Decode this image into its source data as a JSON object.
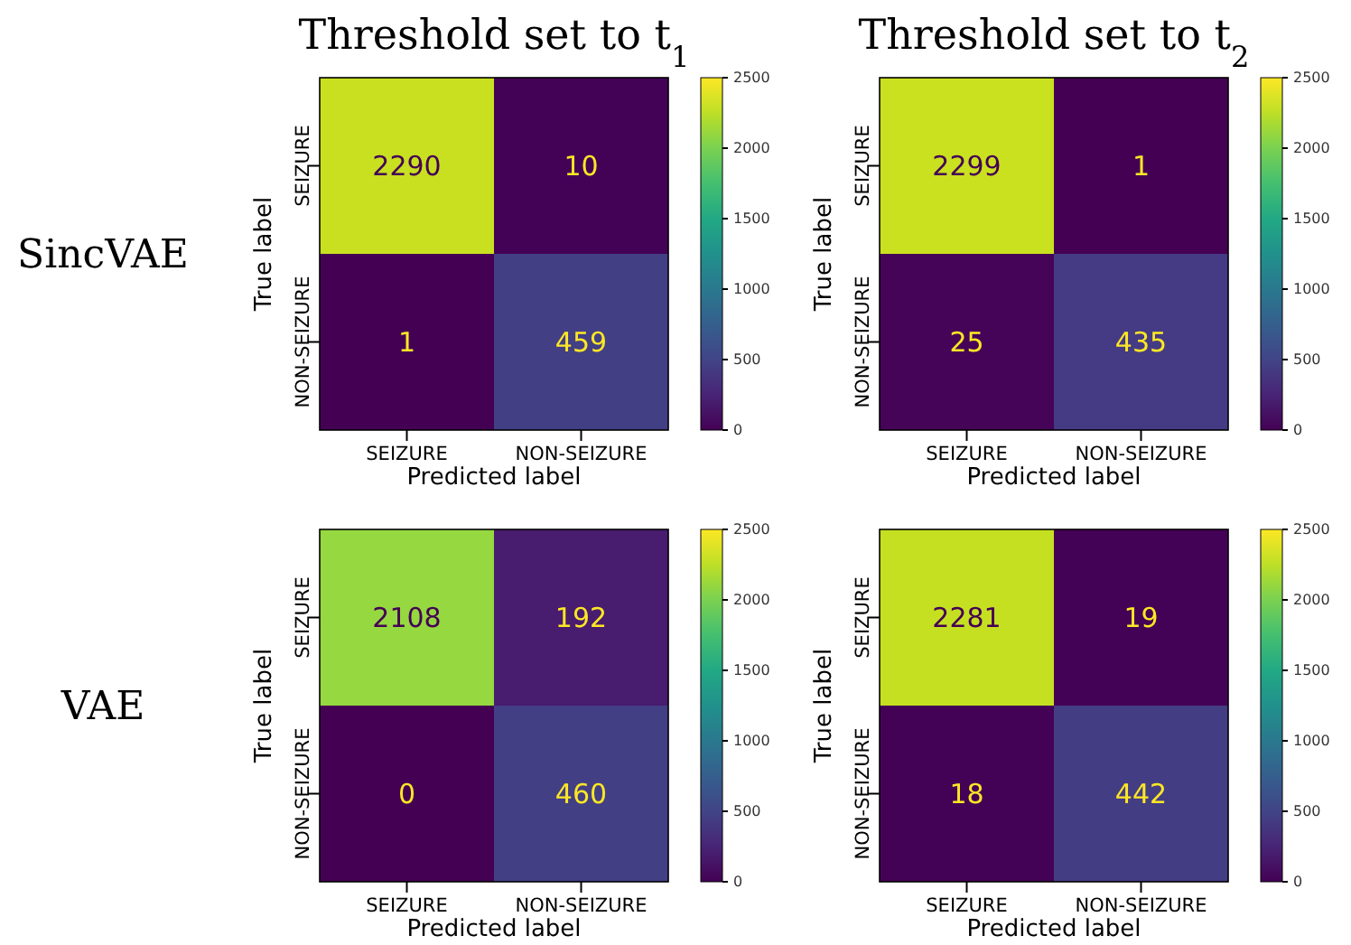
{
  "chart_data": [
    {
      "type": "heatmap",
      "title": "Threshold set to t$_{1}$",
      "xlabel": "Predicted label",
      "ylabel": "True label",
      "categories": [
        "SEIZURE",
        "NON-SEIZURE"
      ],
      "y_categories": [
        "SEIZURE",
        "NON-SEIZURE"
      ],
      "cells": [
        [
          2290,
          10
        ],
        [
          1,
          459
        ]
      ],
      "clim": [
        0,
        2500
      ],
      "cticks": [
        0,
        500,
        1000,
        1500,
        2000,
        2500
      ],
      "data_labels": true,
      "annotations": [
        "SincVAE"
      ]
    },
    {
      "type": "heatmap",
      "title": "Threshold set to t$_{2}$",
      "xlabel": "Predicted label",
      "ylabel": "True label",
      "categories": [
        "SEIZURE",
        "NON-SEIZURE"
      ],
      "y_categories": [
        "SEIZURE",
        "NON-SEIZURE"
      ],
      "cells": [
        [
          2299,
          1
        ],
        [
          25,
          435
        ]
      ],
      "clim": [
        0,
        2500
      ],
      "cticks": [
        0,
        500,
        1000,
        1500,
        2000,
        2500
      ],
      "data_labels": true
    },
    {
      "type": "heatmap",
      "xlabel": "Predicted label",
      "ylabel": "True label",
      "categories": [
        "SEIZURE",
        "NON-SEIZURE"
      ],
      "y_categories": [
        "SEIZURE",
        "NON-SEIZURE"
      ],
      "cells": [
        [
          2108,
          192
        ],
        [
          0,
          460
        ]
      ],
      "clim": [
        0,
        2500
      ],
      "cticks": [
        0,
        500,
        1000,
        1500,
        2000,
        2500
      ],
      "data_labels": true,
      "annotations": [
        "VAE"
      ]
    },
    {
      "type": "heatmap",
      "xlabel": "Predicted label",
      "ylabel": "True label",
      "categories": [
        "SEIZURE",
        "NON-SEIZURE"
      ],
      "y_categories": [
        "SEIZURE",
        "NON-SEIZURE"
      ],
      "cells": [
        [
          2281,
          19
        ],
        [
          18,
          442
        ]
      ],
      "clim": [
        0,
        2500
      ],
      "cticks": [
        0,
        500,
        1000,
        1500,
        2000,
        2500
      ],
      "data_labels": true
    }
  ]
}
